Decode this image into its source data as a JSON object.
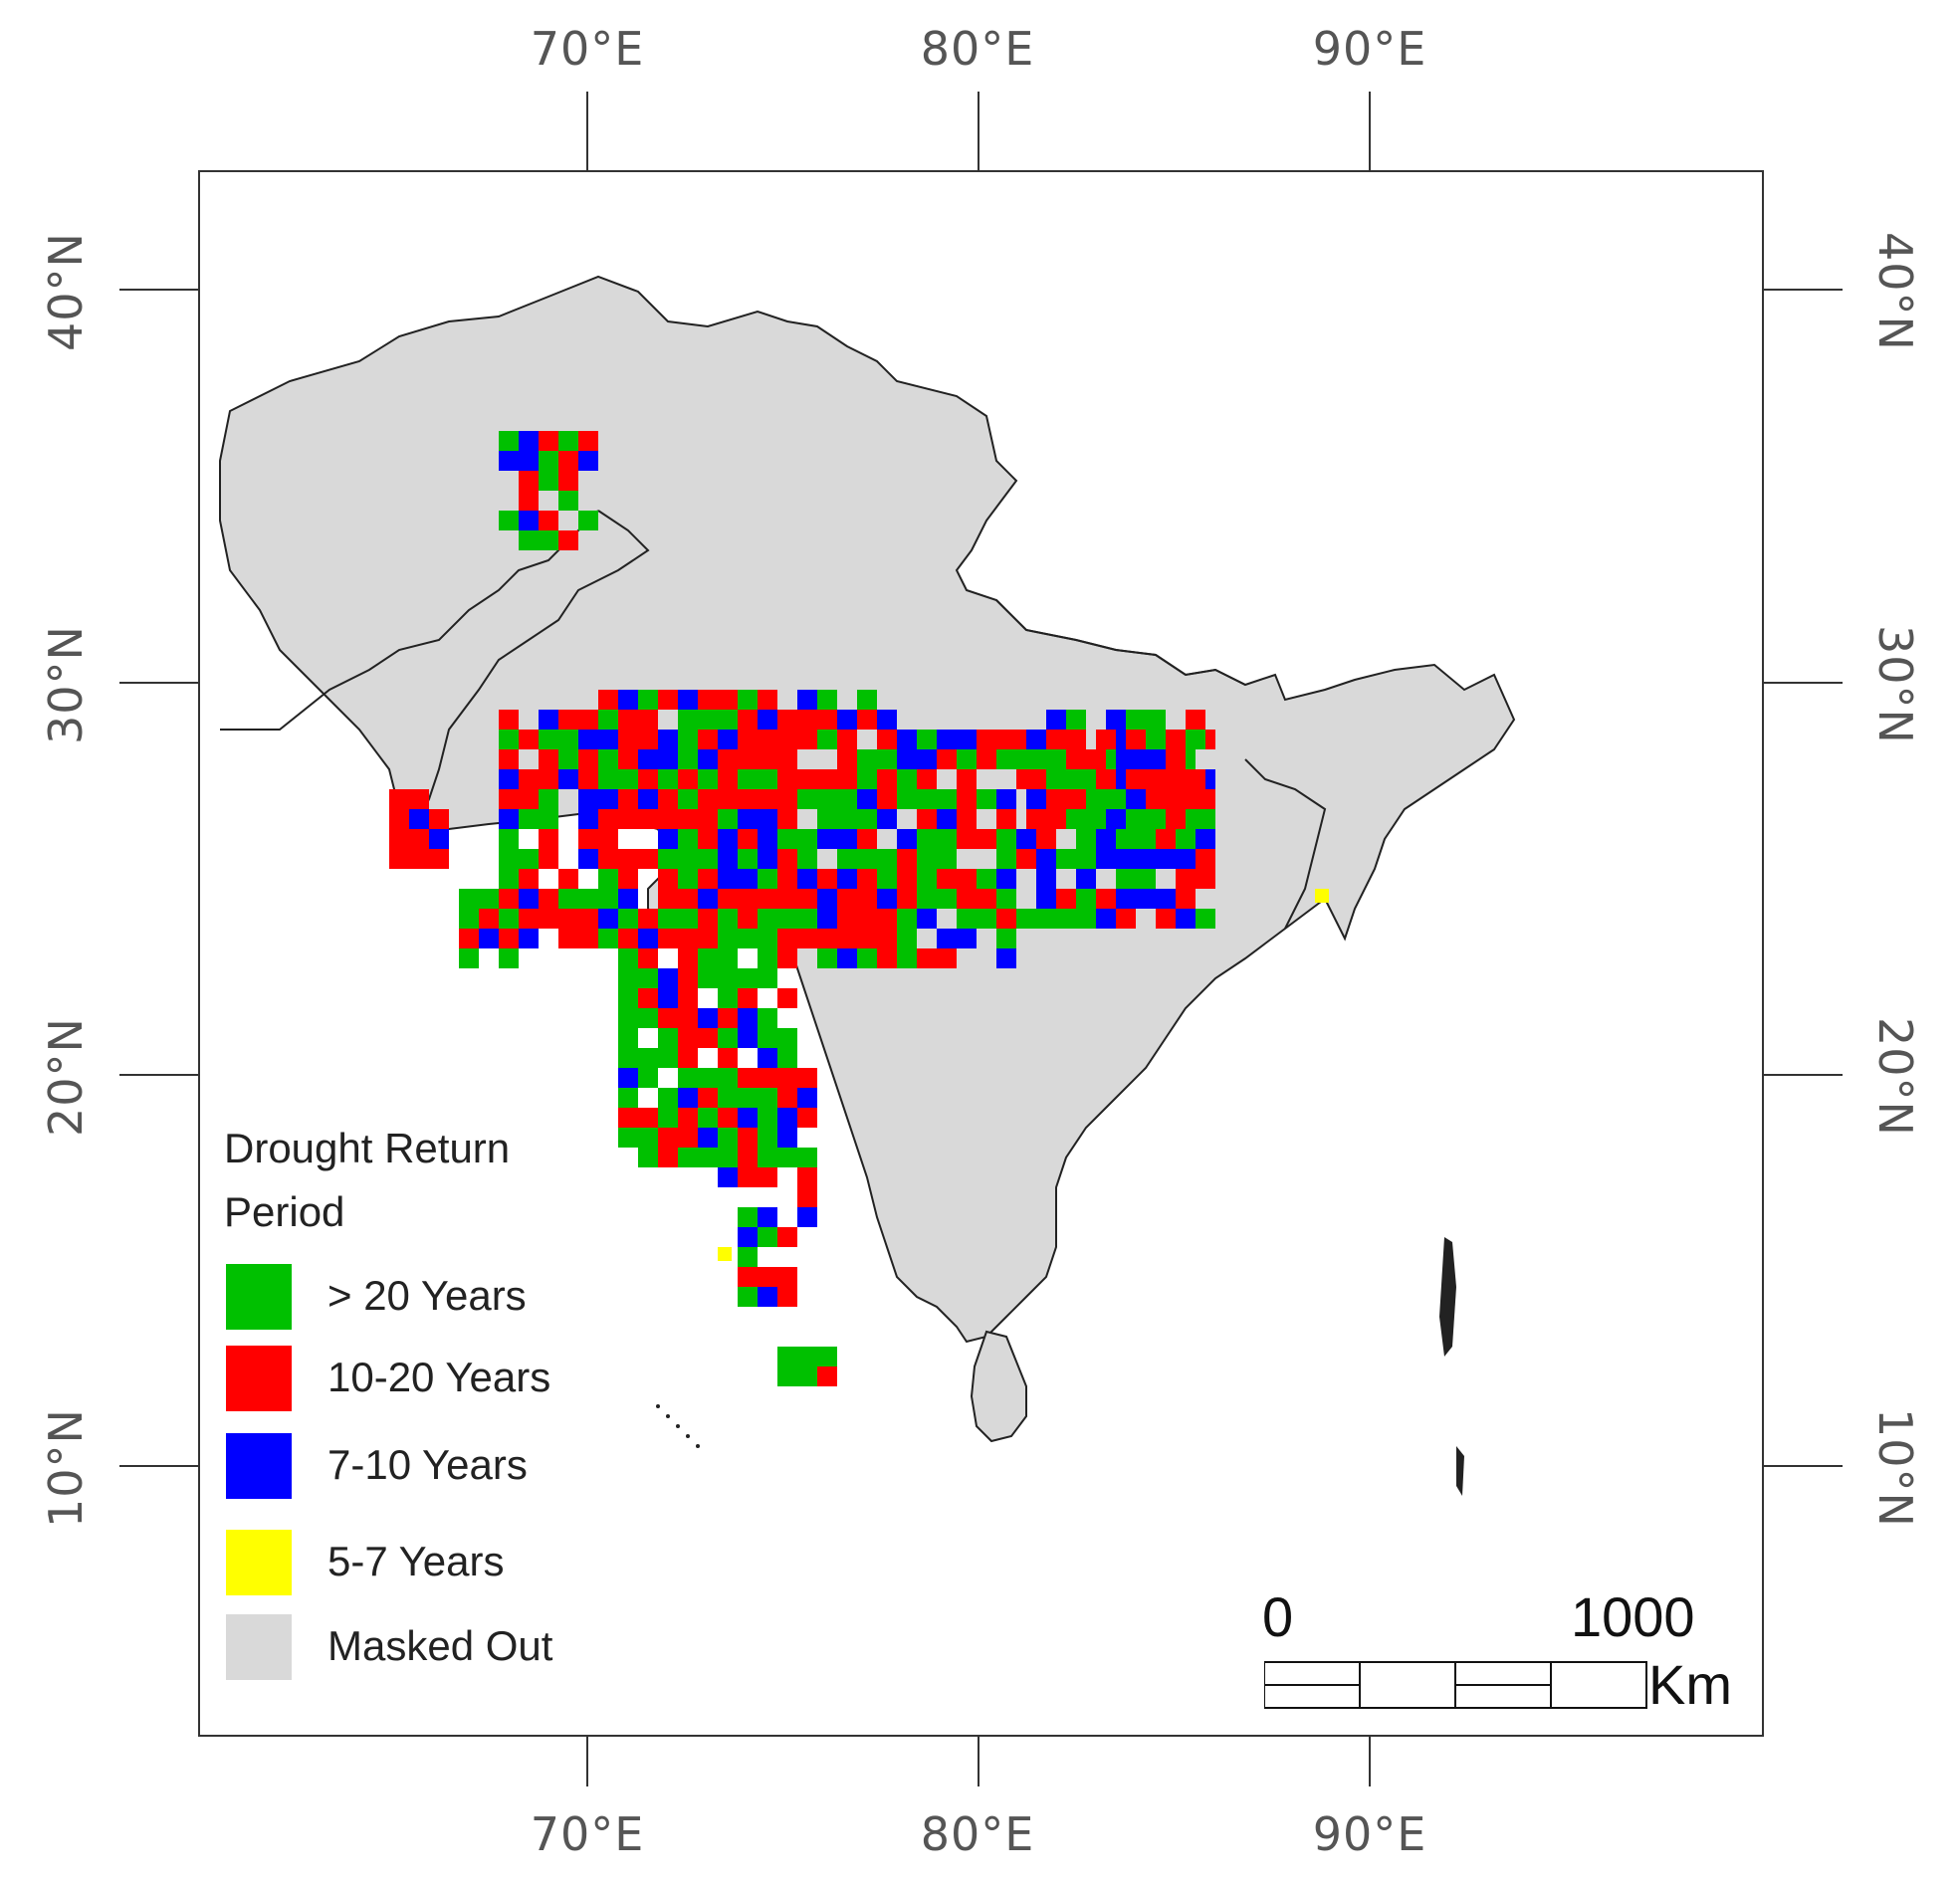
{
  "map": {
    "longitude_labels": [
      "70°E",
      "80°E",
      "90°E"
    ],
    "latitude_labels": [
      "40°N",
      "30°N",
      "20°N",
      "10°N"
    ]
  },
  "legend": {
    "title_line1": "Drought Return",
    "title_line2": "Period",
    "items": [
      {
        "label": "> 20 Years",
        "color": "#00c000"
      },
      {
        "label": "10-20 Years",
        "color": "#ff0000"
      },
      {
        "label": "7-10 Years",
        "color": "#0000ff"
      },
      {
        "label": "5-7 Years",
        "color": "#ffff00"
      },
      {
        "label": "Masked Out",
        "color": "#d9d9d9"
      }
    ]
  },
  "scale_bar": {
    "start": "0",
    "end": "1000",
    "unit": "Km"
  }
}
